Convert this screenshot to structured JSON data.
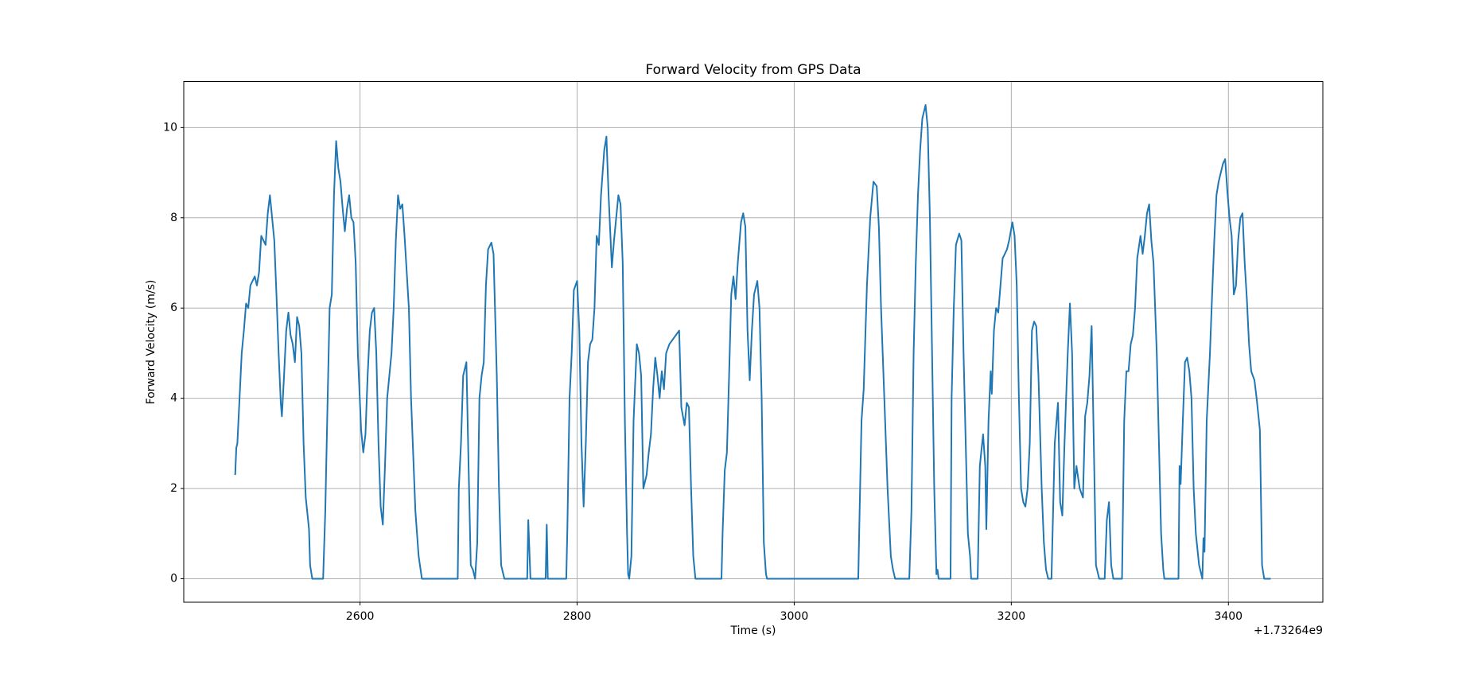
{
  "chart_data": {
    "type": "line",
    "title": "Forward Velocity from GPS Data",
    "x_label": "Time (s)",
    "y_label": "Forward Velocity (m/s)",
    "x_offset_label": "+1.73264e9",
    "color": "#1f77b4",
    "grid": true,
    "xlim": [
      2437.6,
      3487
    ],
    "ylim": [
      -0.52,
      11.02
    ],
    "xticks": [
      2600,
      2800,
      3000,
      3200,
      3400
    ],
    "yticks": [
      0,
      2,
      4,
      6,
      8,
      10
    ],
    "x": [
      2485,
      2486,
      2487,
      2489,
      2491,
      2493,
      2495,
      2497,
      2499,
      2501,
      2503,
      2505,
      2507,
      2509,
      2511,
      2513,
      2515,
      2517,
      2519,
      2521,
      2523,
      2525,
      2527,
      2528,
      2530,
      2532,
      2534,
      2536,
      2538,
      2540,
      2542,
      2544,
      2546,
      2548,
      2550,
      2553,
      2554,
      2556,
      2566,
      2568,
      2570,
      2572,
      2574,
      2576,
      2578,
      2580,
      2582,
      2584,
      2586,
      2588,
      2590,
      2592,
      2594,
      2596,
      2598,
      2601,
      2603,
      2605,
      2607,
      2609,
      2611,
      2613,
      2615,
      2617,
      2619,
      2621,
      2623,
      2625,
      2627,
      2629,
      2631,
      2633,
      2635,
      2637,
      2639,
      2641,
      2643,
      2645,
      2647,
      2651,
      2654,
      2657,
      2690,
      2691,
      2693,
      2695,
      2698,
      2700,
      2702,
      2704,
      2706,
      2708,
      2710,
      2712,
      2714,
      2716,
      2718,
      2721,
      2723,
      2726,
      2728,
      2730,
      2731,
      2733,
      2754,
      2755,
      2757,
      2771,
      2772,
      2773,
      2790,
      2791,
      2793,
      2795,
      2797,
      2800,
      2802,
      2804,
      2806,
      2808,
      2810,
      2812,
      2814,
      2816,
      2818,
      2820,
      2822,
      2825,
      2827,
      2829,
      2832,
      2834,
      2836,
      2838,
      2840,
      2842,
      2844,
      2846,
      2847,
      2848,
      2850,
      2852,
      2855,
      2857,
      2859,
      2861,
      2864,
      2866,
      2868,
      2870,
      2872,
      2874,
      2876,
      2878,
      2880,
      2882,
      2885,
      2888,
      2891,
      2894,
      2896,
      2899,
      2901,
      2903,
      2905,
      2907,
      2909,
      2933,
      2934,
      2936,
      2938,
      2940,
      2942,
      2944,
      2946,
      2948,
      2951,
      2953,
      2955,
      2957,
      2959,
      2961,
      2963,
      2966,
      2968,
      2970,
      2972,
      2974,
      2975,
      3059,
      3060,
      3062,
      3064,
      3067,
      3070,
      3073,
      3076,
      3078,
      3080,
      3083,
      3086,
      3089,
      3091,
      3093,
      3106,
      3108,
      3110,
      3112,
      3114,
      3116,
      3118,
      3121,
      3123,
      3125,
      3127,
      3129,
      3131,
      3132,
      3133,
      3144,
      3145,
      3147,
      3149,
      3152,
      3154,
      3156,
      3158,
      3160,
      3162,
      3163,
      3169,
      3171,
      3174,
      3176,
      3177,
      3179,
      3181,
      3182,
      3184,
      3186,
      3188,
      3190,
      3192,
      3194,
      3196,
      3198,
      3201,
      3203,
      3205,
      3207,
      3209,
      3211,
      3213,
      3215,
      3217,
      3219,
      3221,
      3223,
      3225,
      3228,
      3230,
      3232,
      3234,
      3237,
      3240,
      3243,
      3245,
      3247,
      3249,
      3252,
      3254,
      3256,
      3258,
      3260,
      3263,
      3266,
      3268,
      3270,
      3272,
      3274,
      3276,
      3278,
      3280,
      3281,
      3286,
      3288,
      3290,
      3292,
      3294,
      3302,
      3304,
      3306,
      3308,
      3310,
      3312,
      3314,
      3316,
      3319,
      3321,
      3323,
      3325,
      3327,
      3329,
      3331,
      3334,
      3338,
      3340,
      3341,
      3354,
      3355,
      3356,
      3358,
      3360,
      3362,
      3364,
      3366,
      3368,
      3370,
      3373,
      3376,
      3377,
      3378,
      3380,
      3383,
      3385,
      3387,
      3389,
      3391,
      3393,
      3395,
      3397,
      3399,
      3401,
      3403,
      3405,
      3407,
      3409,
      3411,
      3413,
      3415,
      3417,
      3419,
      3421,
      3424,
      3426,
      3429,
      3431,
      3433,
      3439
    ],
    "values": [
      2.3,
      2.9,
      3.0,
      4.0,
      5.0,
      5.5,
      6.1,
      6.0,
      6.5,
      6.6,
      6.7,
      6.5,
      6.8,
      7.6,
      7.5,
      7.4,
      8.1,
      8.5,
      8.0,
      7.5,
      6.3,
      5.0,
      3.9,
      3.6,
      4.5,
      5.5,
      5.9,
      5.4,
      5.2,
      4.8,
      5.8,
      5.6,
      5.0,
      3.0,
      1.8,
      1.1,
      0.3,
      0,
      0,
      1.5,
      3.8,
      6.0,
      6.3,
      8.5,
      9.7,
      9.1,
      8.8,
      8.2,
      7.7,
      8.2,
      8.5,
      8.0,
      7.9,
      7.0,
      5.0,
      3.3,
      2.8,
      3.2,
      4.5,
      5.5,
      5.9,
      6.0,
      5.0,
      3.0,
      1.6,
      1.2,
      2.5,
      4.0,
      4.5,
      5.0,
      6.0,
      7.5,
      8.5,
      8.2,
      8.3,
      7.6,
      6.8,
      6.0,
      4.0,
      1.5,
      0.5,
      0,
      0,
      2.0,
      3.0,
      4.5,
      4.8,
      2.5,
      0.3,
      0.2,
      0,
      0.8,
      4.0,
      4.5,
      4.8,
      6.5,
      7.3,
      7.45,
      7.2,
      4.5,
      2.0,
      0.3,
      0.2,
      0,
      0,
      1.3,
      0,
      0,
      1.2,
      0,
      0,
      1.1,
      4.0,
      5.0,
      6.4,
      6.6,
      5.5,
      3.0,
      1.6,
      3.0,
      4.8,
      5.2,
      5.3,
      6.0,
      7.6,
      7.4,
      8.5,
      9.5,
      9.8,
      8.5,
      6.9,
      7.5,
      8.0,
      8.5,
      8.3,
      7.0,
      3.5,
      1.0,
      0.1,
      0,
      0.5,
      3.5,
      5.2,
      5.0,
      4.5,
      2.0,
      2.3,
      2.8,
      3.2,
      4.2,
      4.9,
      4.5,
      4.0,
      4.6,
      4.2,
      5.0,
      5.2,
      5.3,
      5.4,
      5.5,
      3.8,
      3.4,
      3.9,
      3.8,
      2.0,
      0.5,
      0,
      0,
      1.0,
      2.4,
      2.8,
      4.5,
      6.3,
      6.7,
      6.2,
      7.0,
      7.9,
      8.1,
      7.8,
      5.5,
      4.4,
      5.5,
      6.3,
      6.6,
      6.0,
      4.0,
      0.8,
      0.1,
      0,
      0,
      1.2,
      3.5,
      4.2,
      6.5,
      8.0,
      8.8,
      8.7,
      7.8,
      6.0,
      4.0,
      2.0,
      0.5,
      0.2,
      0,
      0,
      1.5,
      5.0,
      7.0,
      8.5,
      9.5,
      10.2,
      10.5,
      10.0,
      8.0,
      5.0,
      2.0,
      0.1,
      0.2,
      0,
      0,
      4.0,
      6.0,
      7.4,
      7.65,
      7.5,
      5.0,
      3.0,
      1.0,
      0.5,
      0,
      0,
      2.5,
      3.2,
      2.5,
      1.1,
      3.5,
      4.6,
      4.1,
      5.5,
      6.0,
      5.9,
      6.5,
      7.1,
      7.2,
      7.3,
      7.5,
      7.9,
      7.6,
      6.5,
      4.0,
      2.0,
      1.7,
      1.6,
      2.0,
      3.0,
      5.5,
      5.7,
      5.6,
      4.5,
      2.0,
      0.8,
      0.2,
      0,
      0,
      3.0,
      3.9,
      1.7,
      1.4,
      3.0,
      5.0,
      6.1,
      5.0,
      2.0,
      2.5,
      2.0,
      1.8,
      3.6,
      3.9,
      4.5,
      5.6,
      3.0,
      0.3,
      0.1,
      0,
      0,
      1.3,
      1.7,
      0.3,
      0,
      0,
      3.5,
      4.6,
      4.6,
      5.2,
      5.4,
      6.0,
      7.1,
      7.6,
      7.2,
      7.6,
      8.1,
      8.3,
      7.5,
      7.0,
      5.0,
      1.0,
      0.2,
      0,
      0,
      2.5,
      2.1,
      3.5,
      4.8,
      4.9,
      4.6,
      4.0,
      2.0,
      1.0,
      0.3,
      0,
      0.9,
      0.6,
      3.5,
      5.0,
      6.3,
      7.5,
      8.5,
      8.8,
      9.0,
      9.2,
      9.3,
      8.6,
      8.0,
      7.6,
      6.3,
      6.5,
      7.5,
      8.0,
      8.1,
      7.0,
      6.2,
      5.2,
      4.6,
      4.4,
      4.0,
      3.3,
      0.3,
      0,
      0
    ]
  }
}
